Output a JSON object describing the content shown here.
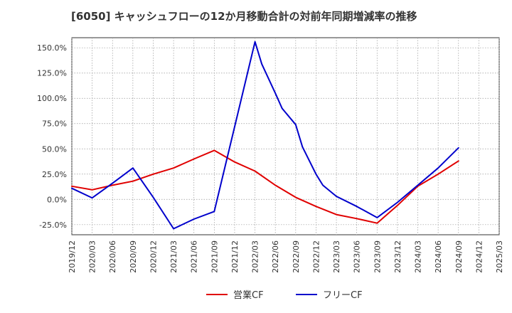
{
  "chart_data": {
    "type": "line",
    "title": "[6050]  キャッシュフローの12か月移動合計の対前年同期増減率の推移",
    "xlabel": "",
    "ylabel": "",
    "ylim": [
      -35,
      160
    ],
    "y_ticks": [
      -25,
      0,
      25,
      50,
      75,
      100,
      125,
      150
    ],
    "y_tick_labels": [
      "-25.0%",
      "0.0%",
      "25.0%",
      "50.0%",
      "75.0%",
      "100.0%",
      "125.0%",
      "150.0%"
    ],
    "x_range": [
      "2019/12",
      "2025/03"
    ],
    "x_ticks": [
      "2019/12",
      "2020/03",
      "2020/06",
      "2020/09",
      "2020/12",
      "2021/03",
      "2021/06",
      "2021/09",
      "2021/12",
      "2022/03",
      "2022/06",
      "2022/09",
      "2022/12",
      "2023/03",
      "2023/06",
      "2023/09",
      "2023/12",
      "2024/03",
      "2024/06",
      "2024/09",
      "2024/12",
      "2025/03"
    ],
    "grid": true,
    "legend_position": "bottom-center",
    "series": [
      {
        "name": "営業CF",
        "color": "#e00000",
        "x": [
          "2019/12",
          "2020/03",
          "2020/06",
          "2020/09",
          "2020/12",
          "2021/03",
          "2021/06",
          "2021/09",
          "2021/12",
          "2022/03",
          "2022/06",
          "2022/09",
          "2022/12",
          "2023/03",
          "2023/06",
          "2023/09",
          "2023/12",
          "2024/03",
          "2024/06",
          "2024/09"
        ],
        "values": [
          13,
          9.5,
          14,
          18,
          25,
          31,
          40,
          48.5,
          37,
          28,
          14,
          2,
          -7,
          -15,
          -19,
          -23.5,
          -6,
          13,
          25,
          38
        ]
      },
      {
        "name": "フリーCF",
        "color": "#0000cc",
        "x": [
          "2019/12",
          "2020/03",
          "2020/06",
          "2020/09",
          "2020/12",
          "2021/03",
          "2021/06",
          "2021/09",
          "2021/12",
          "2022/03",
          "2022/04",
          "2022/06",
          "2022/07",
          "2022/09",
          "2022/10",
          "2022/12",
          "2023/01",
          "2023/03",
          "2023/06",
          "2023/09",
          "2023/12",
          "2024/03",
          "2024/06",
          "2024/09"
        ],
        "values": [
          11,
          1.5,
          16,
          31,
          2,
          -29,
          -19.5,
          -12,
          72,
          156,
          134,
          105,
          90,
          74,
          52,
          25,
          14,
          3,
          -7,
          -18,
          -3,
          14,
          31,
          51
        ]
      }
    ]
  }
}
